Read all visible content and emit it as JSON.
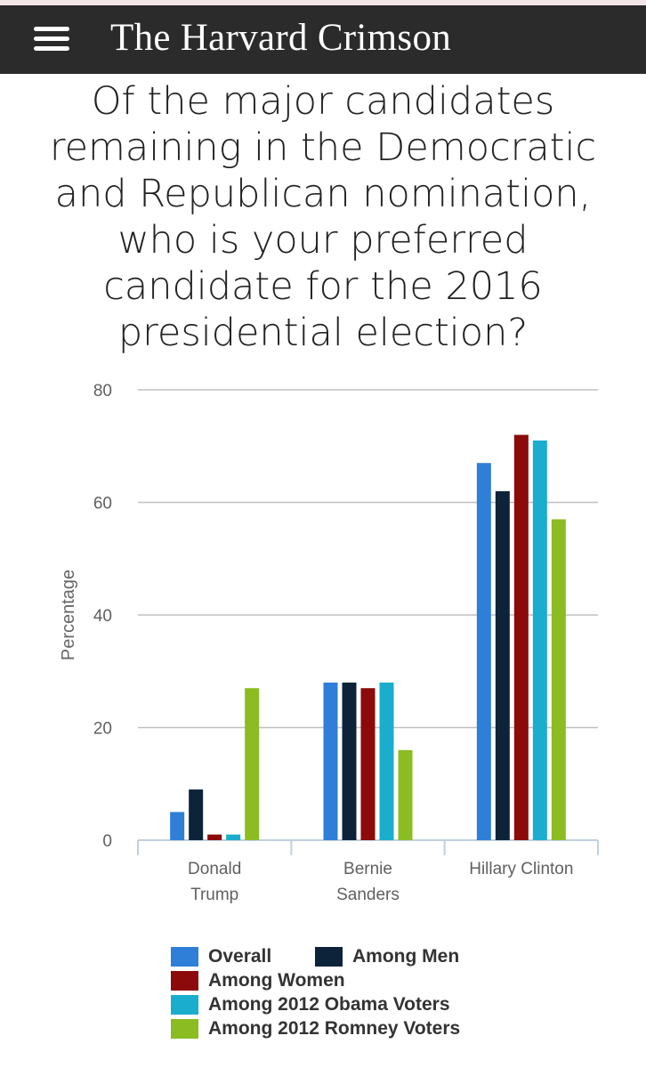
{
  "header": {
    "masthead": "The Harvard Crimson",
    "menu_icon": "hamburger-menu-icon"
  },
  "chart_data": {
    "type": "bar",
    "title": "Of the major candidates remaining in the Democratic and Republican nomination, who is your preferred candidate for the 2016 presidential election?",
    "title_lines": [
      "Of the major candidates",
      "remaining in the Democratic",
      "and Republican nomination,",
      "who is your preferred",
      "candidate for the 2016",
      "presidential election?"
    ],
    "xlabel": "",
    "ylabel": "Percentage",
    "ylim": [
      0,
      80
    ],
    "yticks": [
      0,
      20,
      40,
      60,
      80
    ],
    "grid": true,
    "legend_position": "bottom",
    "categories": [
      "Donald Trump",
      "Bernie Sanders",
      "Hillary Clinton"
    ],
    "category_lines": [
      [
        "Donald",
        "Trump"
      ],
      [
        "Bernie",
        "Sanders"
      ],
      [
        "Hillary Clinton"
      ]
    ],
    "series": [
      {
        "name": "Overall",
        "color": "#2f7ed8",
        "values": [
          5,
          28,
          67
        ]
      },
      {
        "name": "Among Men",
        "color": "#0d233a",
        "values": [
          9,
          28,
          62
        ]
      },
      {
        "name": "Among Women",
        "color": "#8c0a0a",
        "values": [
          1,
          27,
          72
        ]
      },
      {
        "name": "Among 2012 Obama Voters",
        "color": "#1aadce",
        "values": [
          1,
          28,
          71
        ]
      },
      {
        "name": "Among 2012 Romney Voters",
        "color": "#8bbc21",
        "values": [
          27,
          16,
          57
        ]
      }
    ]
  }
}
